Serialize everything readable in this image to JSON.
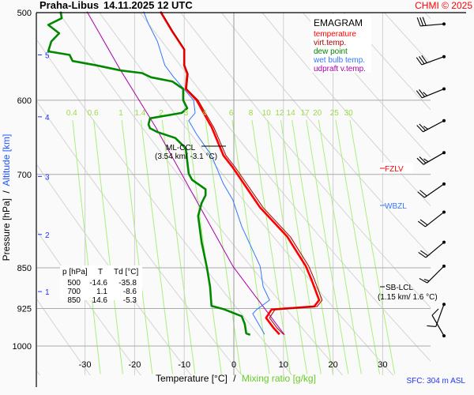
{
  "header": {
    "station": "Praha-Libus",
    "datetime": "14.11.2025 12 UTC",
    "copyright": "CHMI © 2025"
  },
  "legend": {
    "title": "EMAGRAM",
    "items": [
      {
        "label": "temperature",
        "color": "#ff0000"
      },
      {
        "label": "virt.temp.",
        "color": "#aa0000"
      },
      {
        "label": "dew point",
        "color": "#008800"
      },
      {
        "label": "wet bulb temp.",
        "color": "#3377ff"
      },
      {
        "label": "udpraft v.temp.",
        "color": "#aa00aa"
      }
    ]
  },
  "axes": {
    "ylabel_pressure": "Pressure [hPa]",
    "ylabel_sep": "/",
    "ylabel_altitude": "Altitude [km]",
    "xlabel_temp": "Temperature [°C]",
    "xlabel_sep": "/",
    "xlabel_mix": "Mixing ratio [g/kg]"
  },
  "annotations": {
    "ml_ccl": "ML-CCL",
    "ml_ccl_detail": "(3.54 km/ -3.1 °C)",
    "fzlv": "FZLV",
    "wbzl": "WBZL",
    "sb_lcl": "SB-LCL",
    "sb_lcl_detail": "(1.15 km/ 1.6 °C)",
    "sfc": "SFC: 304 m ASL"
  },
  "table": {
    "headers": [
      "p [hPa]",
      "T",
      "Td [°C]"
    ],
    "rows": [
      [
        "500",
        "-14.6",
        "-35.8"
      ],
      [
        "700",
        "1.1",
        "-8.6"
      ],
      [
        "850",
        "14.6",
        "-5.3"
      ]
    ]
  },
  "chart_data": {
    "type": "line",
    "title": "Praha-Libus 14.11.2025 12 UTC",
    "xlabel": "Temperature [°C] / Mixing ratio [g/kg]",
    "ylabel": "Pressure [hPa] / Altitude [km]",
    "xlim": [
      -30,
      30
    ],
    "ylim": [
      1000,
      500
    ],
    "x_ticks": [
      "-30",
      "-20",
      "-10",
      "0",
      "10",
      "20",
      "30"
    ],
    "x_tick_values": [
      -30,
      -20,
      -10,
      0,
      10,
      20,
      30
    ],
    "p_ticks": [
      "500",
      "600",
      "700",
      "850",
      "925",
      "1000"
    ],
    "p_tick_values": [
      500,
      600,
      700,
      850,
      925,
      1000
    ],
    "altitude_ticks": [
      {
        "label": "5",
        "p": 546
      },
      {
        "label": "4",
        "p": 621
      },
      {
        "label": "3",
        "p": 703
      },
      {
        "label": "2",
        "p": 793
      },
      {
        "label": "1",
        "p": 893
      }
    ],
    "mixing_ratios": [
      "0.4",
      "0.6",
      "1",
      "1.4",
      "2",
      "3",
      "4",
      "6",
      "8",
      "10",
      "12",
      "14",
      "17",
      "20",
      "25",
      "30"
    ],
    "mixing_ratio_values": [
      0.4,
      0.6,
      1,
      1.4,
      2,
      3,
      4,
      6,
      8,
      10,
      12,
      14,
      17,
      20,
      25,
      30
    ],
    "series": [
      {
        "name": "temperature",
        "color": "#ff0000",
        "points": [
          [
            499,
            -14.8
          ],
          [
            520,
            -12.4
          ],
          [
            540,
            -10.0
          ],
          [
            558,
            -10.0
          ],
          [
            568,
            -9.4
          ],
          [
            586,
            -9.7
          ],
          [
            600,
            -7.5
          ],
          [
            631,
            -4.8
          ],
          [
            634,
            -4.5
          ],
          [
            673,
            -2.1
          ],
          [
            690,
            -0.2
          ],
          [
            750,
            5.3
          ],
          [
            797,
            10.8
          ],
          [
            847,
            14.5
          ],
          [
            870,
            15.6
          ],
          [
            909,
            17.2
          ],
          [
            921,
            16.2
          ],
          [
            927,
            7.6
          ],
          [
            943,
            6.5
          ],
          [
            963,
            8.0
          ],
          [
            976,
            9.2
          ]
        ]
      },
      {
        "name": "virt.temp.",
        "color": "#aa0000",
        "points": [
          [
            499,
            -14.7
          ],
          [
            520,
            -12.3
          ],
          [
            540,
            -9.9
          ],
          [
            558,
            -9.9
          ],
          [
            568,
            -9.2
          ],
          [
            586,
            -9.5
          ],
          [
            600,
            -7.2
          ],
          [
            631,
            -4.4
          ],
          [
            634,
            -4.1
          ],
          [
            673,
            -1.6
          ],
          [
            690,
            0.3
          ],
          [
            750,
            5.9
          ],
          [
            797,
            11.4
          ],
          [
            847,
            15.1
          ],
          [
            870,
            16.2
          ],
          [
            909,
            17.8
          ],
          [
            921,
            16.8
          ],
          [
            927,
            8.3
          ],
          [
            943,
            7.2
          ],
          [
            963,
            8.7
          ],
          [
            976,
            10.0
          ]
        ]
      },
      {
        "name": "dew point",
        "color": "#008800",
        "points": [
          [
            499,
            -34.9
          ],
          [
            506,
            -34.7
          ],
          [
            513,
            -37.4
          ],
          [
            522,
            -35.2
          ],
          [
            531,
            -36.8
          ],
          [
            542,
            -37.4
          ],
          [
            546,
            -33.1
          ],
          [
            553,
            -32.5
          ],
          [
            558,
            -27.7
          ],
          [
            564,
            -22.8
          ],
          [
            567,
            -18.5
          ],
          [
            572,
            -16.7
          ],
          [
            577,
            -12.4
          ],
          [
            586,
            -10.2
          ],
          [
            600,
            -10.2
          ],
          [
            610,
            -9.4
          ],
          [
            616,
            -10.5
          ],
          [
            623,
            -16.9
          ],
          [
            631,
            -17.2
          ],
          [
            636,
            -16.9
          ],
          [
            641,
            -15.4
          ],
          [
            649,
            -11.8
          ],
          [
            663,
            -9.7
          ],
          [
            699,
            -9.1
          ],
          [
            708,
            -8.4
          ],
          [
            722,
            -5.7
          ],
          [
            731,
            -5.7
          ],
          [
            743,
            -6.5
          ],
          [
            763,
            -7.2
          ],
          [
            806,
            -6.5
          ],
          [
            838,
            -5.7
          ],
          [
            851,
            -5.4
          ],
          [
            884,
            -4.8
          ],
          [
            920,
            -4.5
          ],
          [
            926,
            -2.1
          ],
          [
            940,
            1.6
          ],
          [
            955,
            2.2
          ],
          [
            974,
            2.5
          ],
          [
            977,
            3.3
          ]
        ]
      },
      {
        "name": "wet bulb temp.",
        "color": "#3377ff",
        "points": [
          [
            499,
            -18.2
          ],
          [
            512,
            -17.2
          ],
          [
            531,
            -15.4
          ],
          [
            558,
            -13.9
          ],
          [
            572,
            -12.1
          ],
          [
            600,
            -8.1
          ],
          [
            616,
            -7.8
          ],
          [
            626,
            -9.1
          ],
          [
            644,
            -7.5
          ],
          [
            673,
            -4.5
          ],
          [
            714,
            -2.1
          ],
          [
            738,
            -0.2
          ],
          [
            780,
            1.6
          ],
          [
            847,
            5.3
          ],
          [
            884,
            5.9
          ],
          [
            909,
            7.2
          ],
          [
            927,
            4.6
          ],
          [
            935,
            3.8
          ],
          [
            976,
            6.2
          ]
        ]
      },
      {
        "name": "udpraft v.temp.",
        "color": "#aa00aa",
        "points": [
          [
            499,
            -29.6
          ],
          [
            564,
            -22.8
          ],
          [
            634,
            -15.8
          ],
          [
            847,
            -0.2
          ],
          [
            884,
            2.9
          ],
          [
            977,
            10.2
          ]
        ]
      }
    ],
    "wind": [
      {
        "p": 512,
        "dir": 265,
        "kt": 30
      },
      {
        "p": 548,
        "dir": 250,
        "kt": 30
      },
      {
        "p": 586,
        "dir": 248,
        "kt": 25
      },
      {
        "p": 626,
        "dir": 242,
        "kt": 25
      },
      {
        "p": 669,
        "dir": 240,
        "kt": 25
      },
      {
        "p": 714,
        "dir": 235,
        "kt": 20
      },
      {
        "p": 757,
        "dir": 232,
        "kt": 20
      },
      {
        "p": 806,
        "dir": 230,
        "kt": 20
      },
      {
        "p": 847,
        "dir": 225,
        "kt": 15
      },
      {
        "p": 917,
        "dir": 200,
        "kt": 10
      },
      {
        "p": 979,
        "dir": 330,
        "kt": 10
      }
    ],
    "grid": true,
    "legend_position": "top-right"
  }
}
